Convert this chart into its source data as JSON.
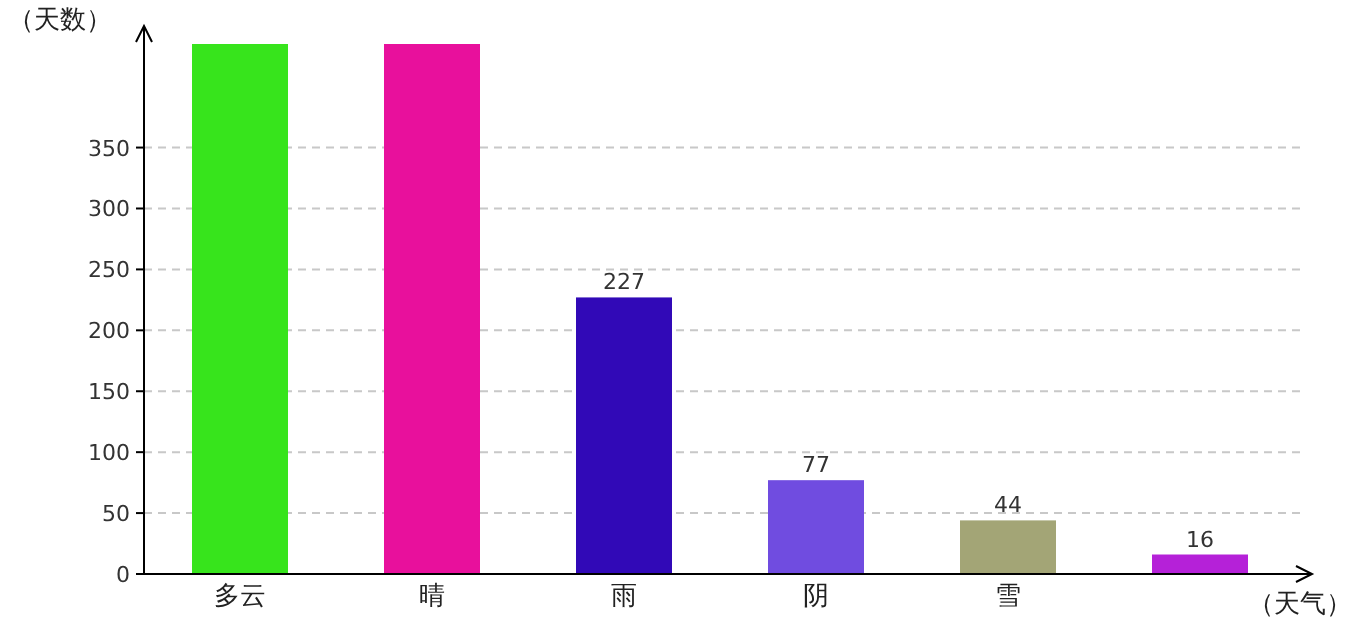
{
  "chart_data": {
    "type": "bar",
    "ylabel": "（天数）",
    "xlabel": "（天气）",
    "categories": [
      "多云",
      "晴",
      "雨",
      "阴",
      "雪",
      null
    ],
    "values": [
      435,
      435,
      227,
      77,
      44,
      16
    ],
    "colors": [
      "#37e41c",
      "#e8109c",
      "#3109b7",
      "#704ce0",
      "#a3a576",
      "#b521d8"
    ],
    "value_labels": [
      null,
      null,
      "227",
      "77",
      "44",
      "16"
    ],
    "ylim": [
      0,
      435
    ],
    "yticks": [
      0,
      50,
      100,
      150,
      200,
      250,
      300,
      350
    ],
    "grid": "y"
  }
}
